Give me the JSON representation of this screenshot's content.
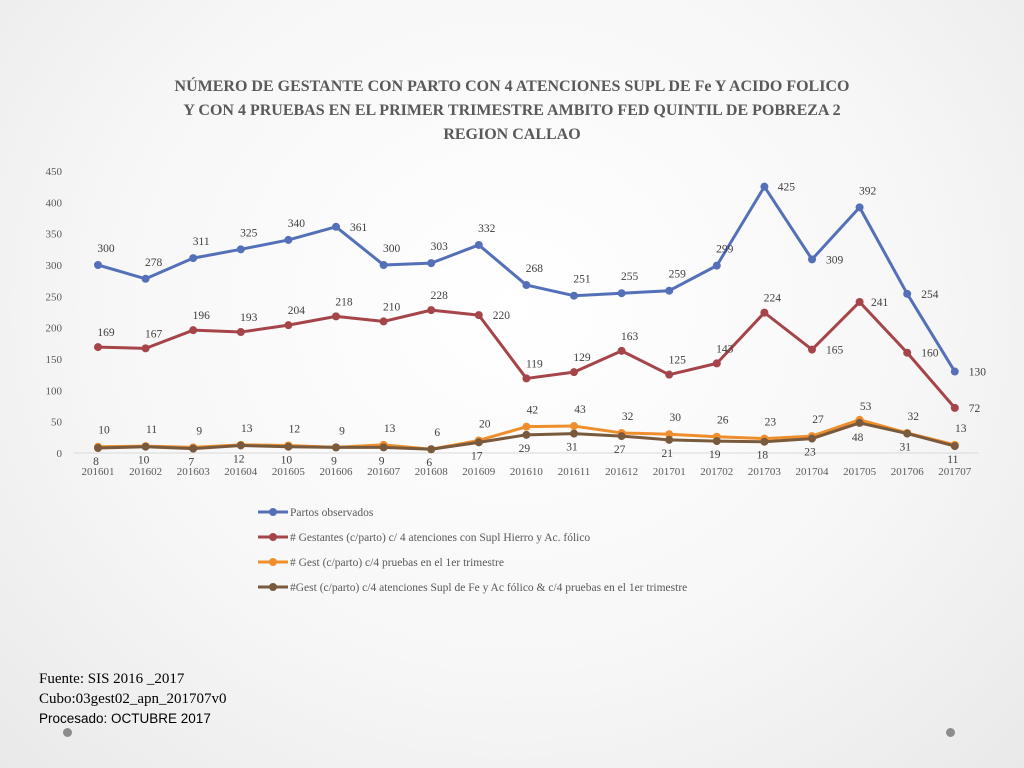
{
  "chart_data": {
    "type": "line",
    "title_lines": [
      "NÚMERO DE GESTANTE  CON PARTO CON 4 ATENCIONES SUPL DE Fe Y ACIDO FOLICO",
      "Y CON 4 PRUEBAS EN EL PRIMER TRIMESTRE AMBITO FED QUINTIL DE POBREZA  2",
      "REGION CALLAO"
    ],
    "categories": [
      "201601",
      "201602",
      "201603",
      "201604",
      "201605",
      "201606",
      "201607",
      "201608",
      "201609",
      "201610",
      "201611",
      "201612",
      "201701",
      "201702",
      "201703",
      "201704",
      "201705",
      "201706",
      "201707"
    ],
    "ylim": [
      0,
      450
    ],
    "yticks": [
      0,
      50,
      100,
      150,
      200,
      250,
      300,
      350,
      400,
      450
    ],
    "grid": false,
    "legend_position": "bottom",
    "series": [
      {
        "name": "Partos observados",
        "color": "#5470b8",
        "values": [
          300,
          278,
          311,
          325,
          340,
          361,
          300,
          303,
          332,
          268,
          251,
          255,
          259,
          299,
          425,
          309,
          392,
          254,
          130
        ]
      },
      {
        "name": "# Gestantes (c/parto) c/ 4 atenciones con Supl Hierro y Ac. fólico",
        "color": "#a54549",
        "values": [
          169,
          167,
          196,
          193,
          204,
          218,
          210,
          228,
          220,
          119,
          129,
          163,
          125,
          143,
          224,
          165,
          241,
          160,
          72
        ]
      },
      {
        "name": "# Gest (c/parto) c/4 pruebas en el 1er trimestre",
        "color": "#ee8e2c",
        "values": [
          10,
          11,
          9,
          13,
          12,
          9,
          13,
          6,
          20,
          42,
          43,
          32,
          30,
          26,
          23,
          27,
          53,
          32,
          13
        ]
      },
      {
        "name": "#Gest (c/parto) c/4 atenciones Supl de Fe y Ac fólico & c/4 pruebas en el 1er trimestre",
        "color": "#7a5a3c",
        "values": [
          8,
          10,
          7,
          12,
          10,
          9,
          9,
          6,
          17,
          29,
          31,
          27,
          21,
          19,
          18,
          23,
          48,
          31,
          11
        ]
      }
    ]
  },
  "footer": {
    "line1": "Fuente: SIS 2016 _2017",
    "line2": "Cubo:03gest02_apn_201707v0",
    "line3": "Procesado: OCTUBRE 2017"
  }
}
